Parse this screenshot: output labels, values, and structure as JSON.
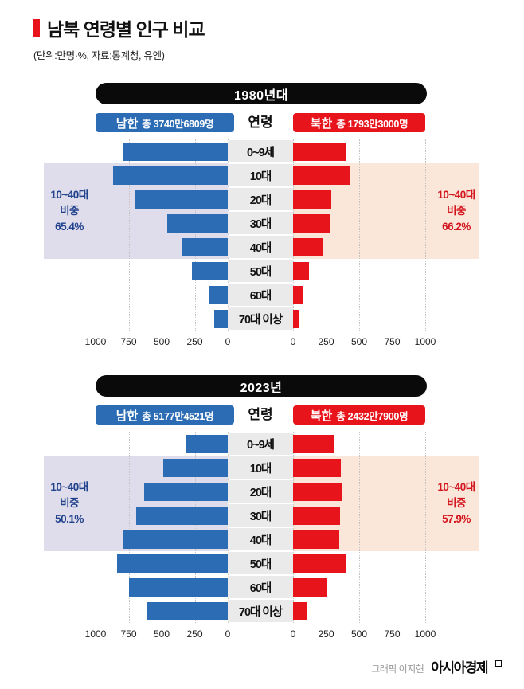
{
  "header": {
    "title": "남북 연령별 인구 비교",
    "subtitle": "(단위:만명·%, 자료:통계청, 유엔)"
  },
  "footer": {
    "credit": "그래픽 이지현",
    "brand": "아시아경제"
  },
  "colors": {
    "south_bar": "#2b6cb4",
    "north_bar": "#e8141c",
    "south_band": "#dfddeb",
    "north_band": "#fbe6da",
    "south_annotation_text": "#20418c",
    "north_annotation_text": "#d3161e",
    "period_header_bg": "#0a0a0a",
    "age_label_bg": "#eaeaea"
  },
  "chart_data": [
    {
      "type": "bar",
      "subtype": "population-pyramid",
      "title": "1980년대",
      "unit": "만명",
      "age_column_header": "연령",
      "categories": [
        "0~9세",
        "10대",
        "20대",
        "30대",
        "40대",
        "50대",
        "60대",
        "70대 이상"
      ],
      "series": [
        {
          "name": "남한",
          "side": "left",
          "total_label": "총 3740만6809명",
          "values": [
            790,
            870,
            700,
            460,
            350,
            270,
            140,
            105
          ]
        },
        {
          "name": "북한",
          "side": "right",
          "total_label": "총 1793만3000명",
          "values": [
            400,
            430,
            290,
            280,
            225,
            120,
            75,
            50
          ]
        }
      ],
      "xlim": [
        0,
        1000
      ],
      "ticks_left": [
        "1000",
        "750",
        "500",
        "250",
        "0"
      ],
      "ticks_right": [
        "0",
        "250",
        "500",
        "750",
        "1000"
      ],
      "highlight": {
        "row_span": [
          "10대",
          "40대"
        ],
        "south_lines": [
          "10~40대",
          "비중",
          "65.4%"
        ],
        "north_lines": [
          "10~40대",
          "비중",
          "66.2%"
        ]
      }
    },
    {
      "type": "bar",
      "subtype": "population-pyramid",
      "title": "2023년",
      "unit": "만명",
      "age_column_header": "연령",
      "categories": [
        "0~9세",
        "10대",
        "20대",
        "30대",
        "40대",
        "50대",
        "60대",
        "70대 이상"
      ],
      "series": [
        {
          "name": "남한",
          "side": "left",
          "total_label": "총 5177만4521명",
          "values": [
            320,
            490,
            630,
            690,
            790,
            840,
            750,
            610
          ]
        },
        {
          "name": "북한",
          "side": "right",
          "total_label": "총 2432만7900명",
          "values": [
            310,
            360,
            375,
            355,
            350,
            400,
            255,
            110
          ]
        }
      ],
      "xlim": [
        0,
        1000
      ],
      "ticks_left": [
        "1000",
        "750",
        "500",
        "250",
        "0"
      ],
      "ticks_right": [
        "0",
        "250",
        "500",
        "750",
        "1000"
      ],
      "highlight": {
        "row_span": [
          "10대",
          "40대"
        ],
        "south_lines": [
          "10~40대",
          "비중",
          "50.1%"
        ],
        "north_lines": [
          "10~40대",
          "비중",
          "57.9%"
        ]
      }
    }
  ]
}
